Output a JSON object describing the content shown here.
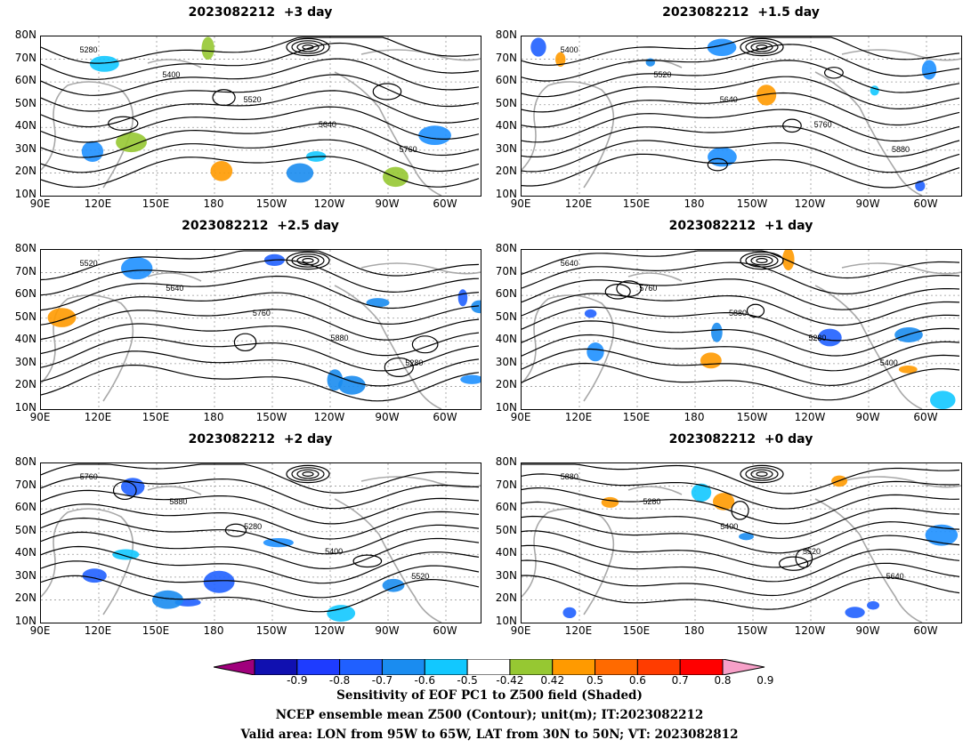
{
  "panels": [
    {
      "title": "2023082212  +3 day"
    },
    {
      "title": "2023082212  +1.5 day"
    },
    {
      "title": "2023082212  +2.5 day"
    },
    {
      "title": "2023082212  +1 day"
    },
    {
      "title": "2023082212  +2 day"
    },
    {
      "title": "2023082212  +0 day"
    }
  ],
  "lat_labels": [
    "80N",
    "70N",
    "60N",
    "50N",
    "40N",
    "30N",
    "20N",
    "10N"
  ],
  "lon_labels": [
    "90E",
    "120E",
    "150E",
    "180",
    "150W",
    "120W",
    "90W",
    "60W"
  ],
  "contour_labels": [
    "5280",
    "5400",
    "5520",
    "5640",
    "5760",
    "5880"
  ],
  "colorbar": {
    "ticks": [
      "-0.9",
      "-0.8",
      "-0.7",
      "-0.6",
      "-0.5",
      "-0.42",
      "0.42",
      "0.5",
      "0.6",
      "0.7",
      "0.8",
      "0.9"
    ],
    "colors": [
      "#a0007c",
      "#1010b0",
      "#1e3cff",
      "#2060ff",
      "#1a8cf0",
      "#12c8ff",
      "#ffffff",
      "#96c832",
      "#ff9a00",
      "#ff6a00",
      "#ff3c00",
      "#ff0000",
      "#f7a0c8"
    ]
  },
  "footer": {
    "line1": "Sensitivity of EOF PC1 to Z500 field (Shaded)",
    "line2": "NCEP ensemble mean Z500 (Contour); unit(m); IT:2023082212",
    "line3": "Valid area: LON from 95W to 65W, LAT from 30N to 50N; VT: 2023082812"
  }
}
